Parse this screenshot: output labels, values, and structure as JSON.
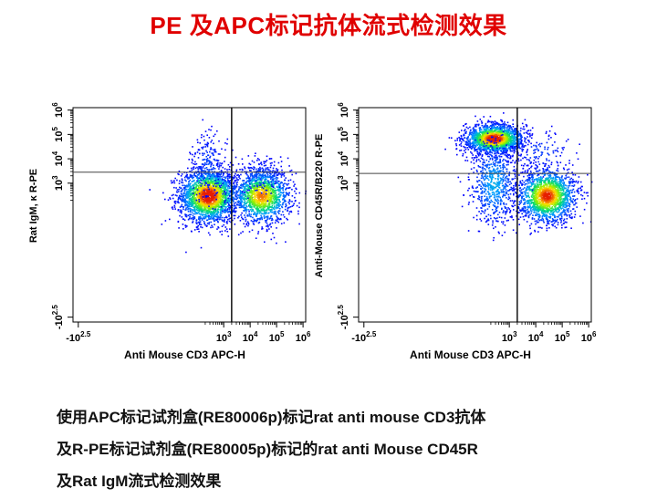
{
  "title": "PE 及APC标记抗体流式检测效果",
  "caption": {
    "lines": [
      "使用APC标记试剂盒(RE80006p)标记rat anti mouse CD3抗体",
      "及R-PE标记试剂盒(RE80005p)标记的rat anti Mouse CD45R",
      "及Rat IgM流式检测效果"
    ]
  },
  "chart_data": [
    {
      "type": "scatter",
      "xlabel": "Anti Mouse CD3 APC-H",
      "ylabel": "Rat IgM, κ R-PE",
      "x_ticks": [
        {
          "value": -2.5,
          "base": "-10",
          "exp": "2.5"
        },
        {
          "value": 3,
          "base": "10",
          "exp": "3"
        },
        {
          "value": 4,
          "base": "10",
          "exp": "4"
        },
        {
          "value": 5,
          "base": "10",
          "exp": "5"
        },
        {
          "value": 6,
          "base": "10",
          "exp": "6"
        }
      ],
      "y_ticks": [
        {
          "value": -2.5,
          "base": "-10",
          "exp": "2.5"
        },
        {
          "value": 3,
          "base": "10",
          "exp": "3"
        },
        {
          "value": 4,
          "base": "10",
          "exp": "4"
        },
        {
          "value": 5,
          "base": "10",
          "exp": "5"
        },
        {
          "value": 6,
          "base": "10",
          "exp": "6"
        }
      ],
      "xlim": [
        -2.7,
        6.1
      ],
      "ylim": [
        -2.7,
        6.1
      ],
      "gate": {
        "x": 3.3,
        "y": 3.45
      },
      "populations": [
        {
          "cx": 2.4,
          "cy": 2.5,
          "sx": 0.55,
          "sy": 0.55,
          "n": 2200,
          "peak": 1.0
        },
        {
          "cx": 4.4,
          "cy": 2.5,
          "sx": 0.55,
          "sy": 0.55,
          "n": 1500,
          "peak": 0.8
        },
        {
          "cx": 2.4,
          "cy": 3.7,
          "sx": 0.35,
          "sy": 0.7,
          "n": 220,
          "peak": 0.1
        },
        {
          "cx": 4.4,
          "cy": 3.3,
          "sx": 0.4,
          "sy": 0.35,
          "n": 140,
          "peak": 0.12
        }
      ]
    },
    {
      "type": "scatter",
      "xlabel": "Anti Mouse CD3 APC-H",
      "ylabel": "Anti-Mouse CD45R/B220 R-PE",
      "x_ticks": [
        {
          "value": -2.5,
          "base": "-10",
          "exp": "2.5"
        },
        {
          "value": 3,
          "base": "10",
          "exp": "3"
        },
        {
          "value": 4,
          "base": "10",
          "exp": "4"
        },
        {
          "value": 5,
          "base": "10",
          "exp": "5"
        },
        {
          "value": 6,
          "base": "10",
          "exp": "6"
        }
      ],
      "y_ticks": [
        {
          "value": -2.5,
          "base": "-10",
          "exp": "2.5"
        },
        {
          "value": 3,
          "base": "10",
          "exp": "3"
        },
        {
          "value": 4,
          "base": "10",
          "exp": "4"
        },
        {
          "value": 5,
          "base": "10",
          "exp": "5"
        },
        {
          "value": 6,
          "base": "10",
          "exp": "6"
        }
      ],
      "xlim": [
        -2.7,
        6.1
      ],
      "ylim": [
        -2.7,
        6.1
      ],
      "gate": {
        "x": 3.3,
        "y": 3.4
      },
      "populations": [
        {
          "cx": 2.4,
          "cy": 4.85,
          "sx": 0.55,
          "sy": 0.3,
          "n": 1800,
          "peak": 1.0
        },
        {
          "cx": 4.4,
          "cy": 2.5,
          "sx": 0.55,
          "sy": 0.55,
          "n": 1700,
          "peak": 0.9
        },
        {
          "cx": 2.4,
          "cy": 3.0,
          "sx": 0.45,
          "sy": 0.9,
          "n": 700,
          "peak": 0.25
        },
        {
          "cx": 4.1,
          "cy": 4.3,
          "sx": 0.7,
          "sy": 0.45,
          "n": 120,
          "peak": 0.08
        }
      ]
    }
  ]
}
